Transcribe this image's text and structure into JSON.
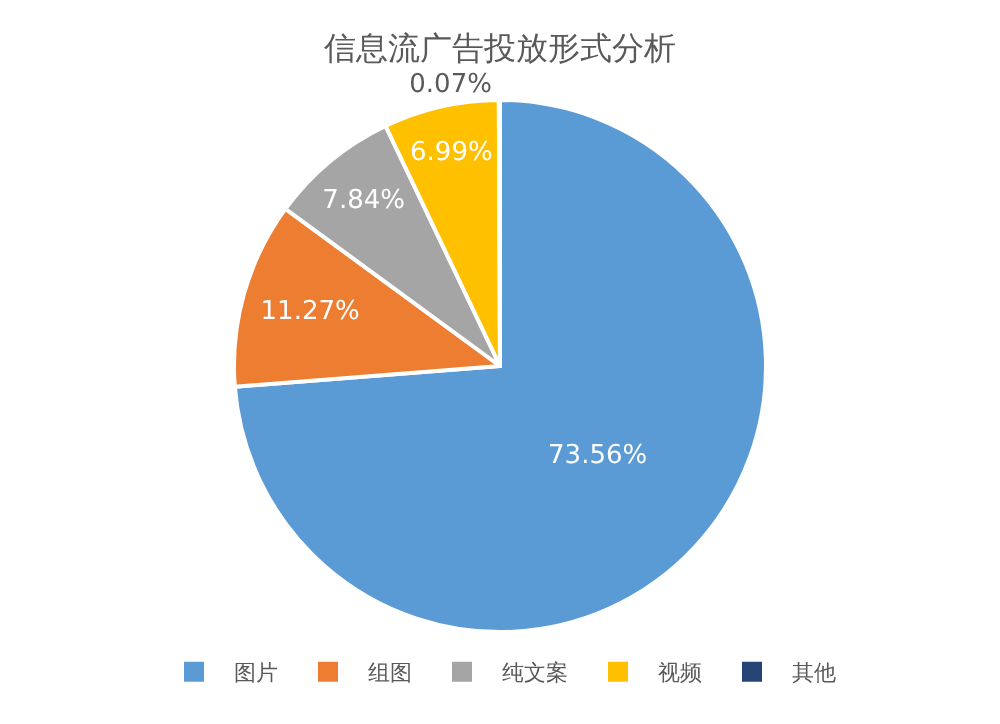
{
  "chart_data": {
    "type": "pie",
    "title": "信息流广告投放形式分析",
    "categories": [
      "图片",
      "组图",
      "纯文案",
      "视频",
      "其他"
    ],
    "values": [
      73.56,
      11.27,
      7.84,
      6.99,
      0.07
    ],
    "value_labels": [
      "73.56%",
      "11.27%",
      "7.84%",
      "6.99%",
      "0.07%"
    ],
    "colors": [
      "#5b9bd5",
      "#ed7d31",
      "#a5a5a5",
      "#ffc000",
      "#264478"
    ],
    "legend": "bottom"
  }
}
